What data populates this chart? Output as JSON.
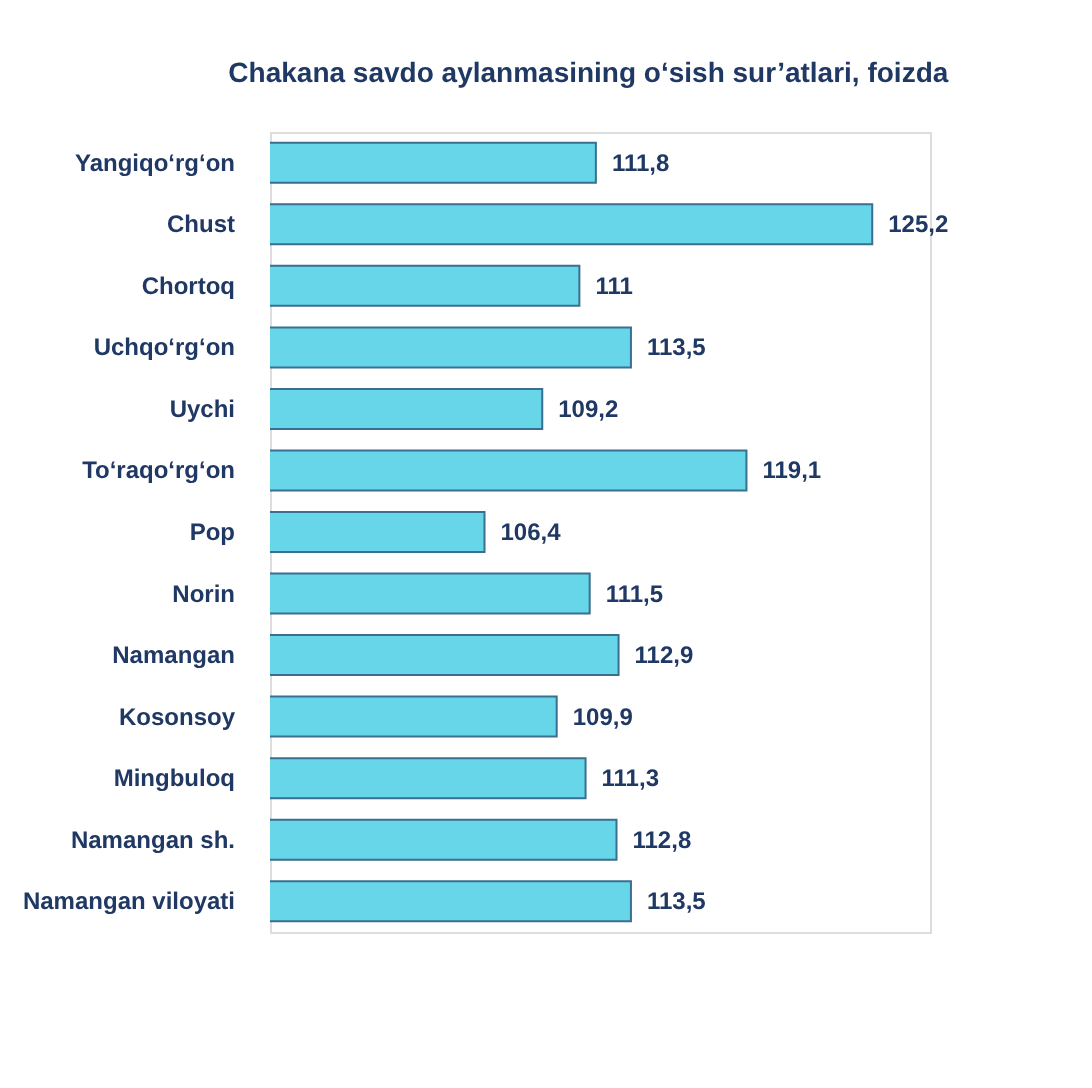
{
  "chart_data": {
    "type": "bar",
    "orientation": "horizontal",
    "title": "Chakana savdo aylanmasining o‘sish sur’atlari, foizda",
    "categories": [
      "Yangiqo‘rg‘on",
      "Chust",
      "Chortoq",
      "Uchqo‘rg‘on",
      "Uychi",
      "To‘raqo‘rg‘on",
      "Pop",
      "Norin",
      "Namangan",
      "Kosonsoy",
      "Mingbuloq",
      "Namangan sh.",
      "Namangan viloyati"
    ],
    "values": [
      111.8,
      125.2,
      111,
      113.5,
      109.2,
      119.1,
      106.4,
      111.5,
      112.9,
      109.9,
      111.3,
      112.8,
      113.5
    ],
    "value_labels": [
      "111,8",
      "125,2",
      "111",
      "113,5",
      "109,2",
      "119,1",
      "106,4",
      "111,5",
      "112,9",
      "109,9",
      "111,3",
      "112,8",
      "113,5"
    ],
    "color": "#66d6e8",
    "xlim": [
      96,
      128
    ],
    "tick_labels": "y"
  }
}
